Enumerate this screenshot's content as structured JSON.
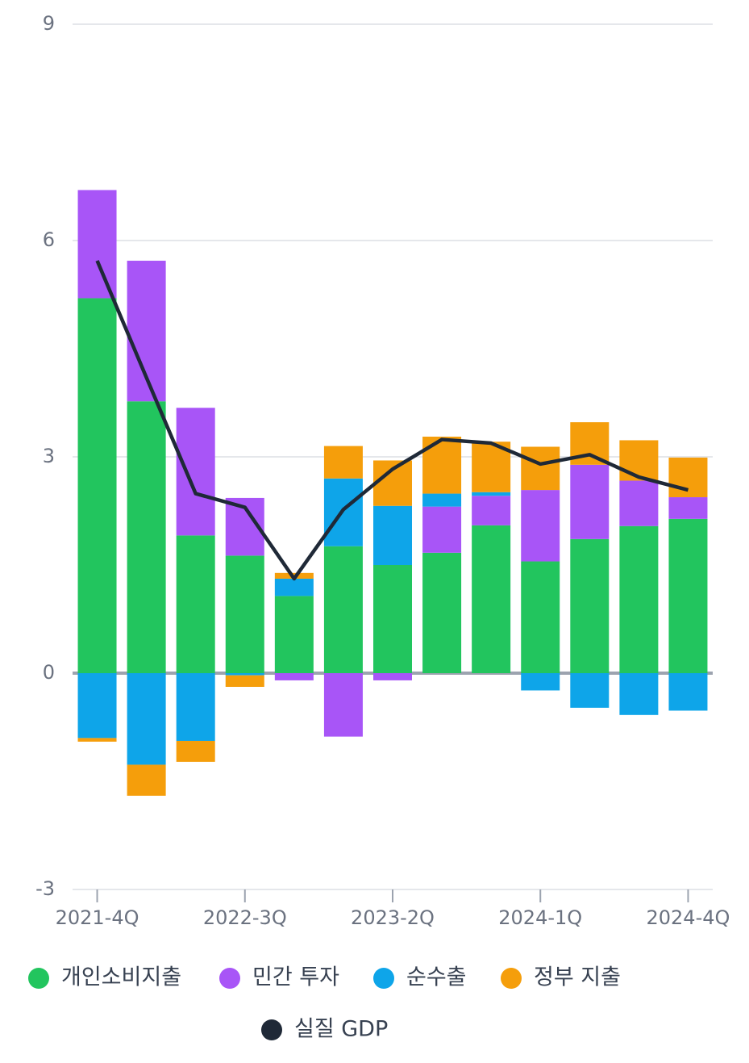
{
  "chart_data": {
    "type": "bar",
    "stacked": true,
    "categories": [
      "2021-4Q",
      null,
      null,
      "2022-3Q",
      null,
      null,
      "2023-2Q",
      null,
      null,
      "2024-1Q",
      null,
      null,
      "2024-4Q"
    ],
    "series": [
      {
        "name": "개인소비지출",
        "color": "#22c55e",
        "values": [
          5.2,
          3.77,
          1.91,
          1.63,
          1.07,
          1.76,
          1.5,
          1.67,
          2.05,
          1.55,
          1.86,
          2.04,
          2.14
        ]
      },
      {
        "name": "민간 투자",
        "color": "#a855f7",
        "values": [
          1.5,
          1.95,
          1.77,
          0.8,
          -0.1,
          -0.88,
          -0.1,
          0.64,
          0.41,
          0.99,
          1.03,
          0.63,
          0.3
        ]
      },
      {
        "name": "순수출",
        "color": "#0ea5e9",
        "values": [
          -0.9,
          -1.27,
          -0.94,
          -0.03,
          0.24,
          0.94,
          0.82,
          0.18,
          0.05,
          -0.24,
          -0.48,
          -0.58,
          -0.52
        ]
      },
      {
        "name": "정부 지출",
        "color": "#f59e0b",
        "values": [
          -0.05,
          -0.43,
          -0.29,
          -0.16,
          0.08,
          0.45,
          0.63,
          0.79,
          0.7,
          0.6,
          0.59,
          0.56,
          0.55
        ]
      },
      {
        "name": "실질 GDP",
        "color": "#1f2937",
        "type": "line",
        "values": [
          5.72,
          4.1,
          2.49,
          2.3,
          1.31,
          2.27,
          2.83,
          3.24,
          3.19,
          2.9,
          3.03,
          2.72,
          2.54
        ]
      }
    ],
    "ylim": [
      -3,
      9
    ],
    "yticks": [
      -3,
      0,
      3,
      6,
      9
    ],
    "grid": true
  }
}
